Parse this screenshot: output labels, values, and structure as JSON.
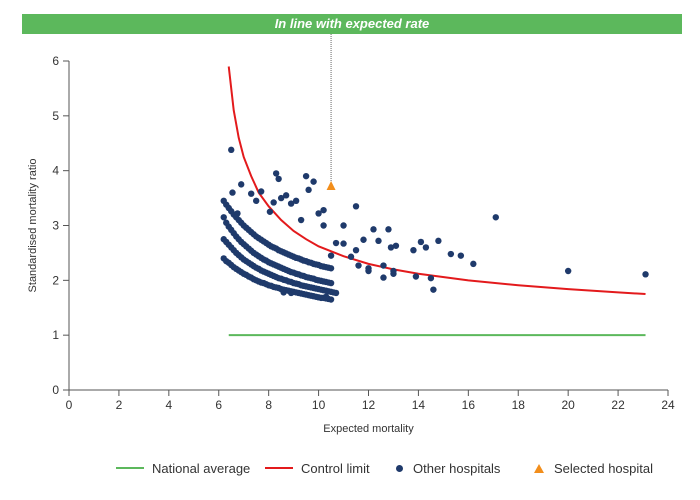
{
  "banner": {
    "text": "In line with expected rate"
  },
  "chart_data": {
    "type": "scatter",
    "xlabel": "Expected mortality",
    "ylabel": "Standardised mortality ratio",
    "xlim": [
      0,
      24
    ],
    "ylim": [
      0,
      6
    ],
    "xticks": [
      0,
      2,
      4,
      6,
      8,
      10,
      12,
      14,
      16,
      18,
      20,
      22,
      24
    ],
    "yticks": [
      0,
      1,
      2,
      3,
      4,
      5,
      6
    ],
    "legend_position": "bottom",
    "colors": {
      "national": "#5cb85c",
      "control": "#e31a1c",
      "hospitals": "#1f3a6b",
      "selected": "#f28e1c"
    },
    "series": [
      {
        "name": "National average",
        "type": "line",
        "x": [
          6.4,
          23.1
        ],
        "y": [
          1.0,
          1.0
        ]
      },
      {
        "name": "Control limit",
        "type": "line",
        "x": [
          6.4,
          6.6,
          6.8,
          7.0,
          7.3,
          7.6,
          8.0,
          8.5,
          9.0,
          9.5,
          10.0,
          11.0,
          12.0,
          13.0,
          14.0,
          16.0,
          18.0,
          20.0,
          22.0,
          23.1
        ],
        "y": [
          5.9,
          5.1,
          4.6,
          4.25,
          3.9,
          3.6,
          3.35,
          3.1,
          2.9,
          2.75,
          2.62,
          2.44,
          2.3,
          2.2,
          2.12,
          2.0,
          1.91,
          1.84,
          1.78,
          1.75
        ]
      },
      {
        "name": "Other hospitals",
        "type": "scatter",
        "x": [
          6.5,
          6.55,
          6.75,
          6.9,
          7.3,
          7.5,
          7.7,
          8.05,
          8.2,
          8.3,
          8.4,
          8.5,
          8.7,
          8.9,
          9.1,
          9.3,
          9.5,
          9.6,
          9.8,
          10.0,
          10.2,
          11.0,
          11.5,
          11.8,
          12.2,
          12.4,
          12.8,
          12.9,
          13.1,
          13.8,
          14.1,
          14.3,
          14.8,
          15.3,
          15.7,
          16.2,
          17.1,
          20.0,
          23.1,
          11.6,
          12.0,
          12.6,
          13.0,
          13.9,
          14.5,
          14.6,
          12.0,
          12.6,
          13.0,
          10.3,
          10.5,
          10.7,
          11.0,
          11.3,
          11.5,
          8.6,
          8.9,
          10.2,
          6.2,
          6.3,
          6.4,
          6.5,
          6.6,
          6.7,
          6.8,
          6.9,
          7.0,
          7.1,
          7.2,
          7.3,
          7.4,
          7.5,
          7.6,
          7.7,
          7.8,
          7.9,
          8.0,
          8.1,
          8.2,
          8.3,
          8.4,
          8.5,
          8.6,
          8.7,
          8.8,
          8.9,
          9.0,
          9.1,
          9.2,
          9.3,
          9.4,
          9.5,
          9.6,
          9.7,
          9.8,
          9.9,
          10.0,
          10.1,
          10.2,
          10.3,
          10.4,
          10.5,
          6.2,
          6.3,
          6.4,
          6.5,
          6.6,
          6.7,
          6.8,
          6.9,
          7.0,
          7.1,
          7.2,
          7.3,
          7.4,
          7.5,
          7.6,
          7.7,
          7.8,
          7.9,
          8.0,
          8.1,
          8.2,
          8.3,
          8.4,
          8.5,
          8.6,
          8.7,
          8.8,
          8.9,
          9.0,
          9.1,
          9.2,
          9.3,
          9.4,
          9.5,
          9.6,
          9.7,
          9.8,
          9.9,
          10.0,
          10.1,
          10.2,
          10.3,
          10.4,
          10.5,
          10.6,
          10.7,
          6.2,
          6.3,
          6.4,
          6.5,
          6.6,
          6.7,
          6.8,
          6.9,
          7.0,
          7.1,
          7.2,
          7.3,
          7.4,
          7.5,
          7.6,
          7.7,
          7.8,
          7.9,
          8.0,
          8.1,
          8.2,
          8.3,
          8.4,
          8.5,
          8.6,
          8.7,
          8.8,
          8.9,
          9.0,
          9.1,
          9.2,
          9.3,
          9.4,
          9.5,
          9.6,
          9.7,
          9.8,
          9.9,
          10.0,
          10.1,
          10.2,
          10.3,
          10.4,
          10.5,
          6.2,
          6.3,
          6.4,
          6.5,
          6.6,
          6.7,
          6.8,
          6.9,
          7.0,
          7.1,
          7.2,
          7.3,
          7.4,
          7.5,
          7.6,
          7.7,
          7.8,
          7.9,
          8.0,
          8.1,
          8.2,
          8.3,
          8.4,
          8.5,
          8.6,
          8.7,
          8.8,
          8.9,
          9.0,
          9.1,
          9.2,
          9.3,
          9.4,
          9.5,
          9.6,
          9.7,
          9.8,
          9.9,
          10.0,
          10.1,
          10.2,
          10.3,
          10.4,
          10.5
        ],
        "y": [
          4.38,
          3.6,
          3.22,
          3.75,
          3.58,
          3.45,
          3.62,
          3.25,
          3.42,
          3.95,
          3.85,
          3.5,
          3.55,
          3.4,
          3.45,
          3.1,
          3.9,
          3.65,
          3.8,
          3.22,
          3.28,
          2.67,
          3.35,
          2.74,
          2.93,
          2.72,
          2.93,
          2.6,
          2.63,
          2.55,
          2.7,
          2.6,
          2.72,
          2.48,
          2.45,
          2.3,
          3.15,
          2.17,
          2.11,
          2.27,
          2.17,
          2.27,
          2.12,
          2.07,
          2.04,
          1.83,
          2.22,
          2.05,
          2.17,
          1.7,
          2.45,
          2.68,
          3.0,
          2.43,
          2.55,
          1.78,
          1.77,
          3.0,
          2.4,
          2.35,
          2.32,
          2.28,
          2.24,
          2.21,
          2.18,
          2.15,
          2.12,
          2.1,
          2.07,
          2.05,
          2.02,
          2.0,
          1.98,
          1.96,
          1.95,
          1.93,
          1.91,
          1.9,
          1.88,
          1.87,
          1.86,
          1.84,
          1.83,
          1.82,
          1.81,
          1.8,
          1.79,
          1.78,
          1.77,
          1.76,
          1.75,
          1.74,
          1.73,
          1.72,
          1.71,
          1.7,
          1.69,
          1.68,
          1.68,
          1.67,
          1.66,
          1.65,
          2.75,
          2.7,
          2.65,
          2.6,
          2.55,
          2.5,
          2.46,
          2.42,
          2.38,
          2.35,
          2.32,
          2.29,
          2.26,
          2.23,
          2.21,
          2.18,
          2.16,
          2.14,
          2.12,
          2.1,
          2.08,
          2.06,
          2.04,
          2.03,
          2.01,
          2.0,
          1.98,
          1.97,
          1.95,
          1.94,
          1.93,
          1.91,
          1.9,
          1.89,
          1.88,
          1.87,
          1.86,
          1.85,
          1.84,
          1.83,
          1.82,
          1.81,
          1.8,
          1.79,
          1.78,
          1.77,
          3.15,
          3.05,
          2.98,
          2.92,
          2.86,
          2.8,
          2.75,
          2.7,
          2.66,
          2.62,
          2.58,
          2.54,
          2.5,
          2.47,
          2.44,
          2.41,
          2.38,
          2.36,
          2.33,
          2.31,
          2.29,
          2.27,
          2.25,
          2.23,
          2.21,
          2.19,
          2.17,
          2.15,
          2.14,
          2.12,
          2.11,
          2.09,
          2.08,
          2.06,
          2.05,
          2.04,
          2.03,
          2.01,
          2.0,
          1.99,
          1.98,
          1.97,
          1.96,
          1.95,
          3.45,
          3.38,
          3.32,
          3.26,
          3.2,
          3.15,
          3.1,
          3.05,
          3.0,
          2.96,
          2.92,
          2.88,
          2.84,
          2.8,
          2.77,
          2.74,
          2.71,
          2.68,
          2.65,
          2.62,
          2.6,
          2.58,
          2.55,
          2.53,
          2.51,
          2.49,
          2.47,
          2.45,
          2.43,
          2.41,
          2.4,
          2.38,
          2.36,
          2.35,
          2.33,
          2.32,
          2.3,
          2.29,
          2.28,
          2.26,
          2.25,
          2.24,
          2.23,
          2.22
        ]
      },
      {
        "name": "Selected hospital",
        "type": "scatter",
        "x": [
          10.5
        ],
        "y": [
          3.72
        ]
      }
    ]
  }
}
